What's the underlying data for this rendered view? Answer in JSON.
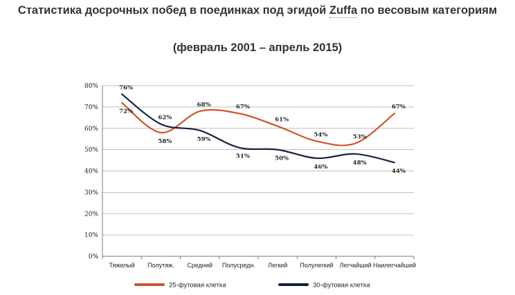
{
  "title": {
    "line1_before": "Статистика досрочных побед в поединках под эгидой ",
    "line1_link": "Zuffa",
    "line1_after": " по весовым категориям",
    "line2": "(февраль 2001 – апрель 2015)"
  },
  "chart_data": {
    "type": "line",
    "title": "Статистика досрочных побед в поединках под эгидой Zuffa по весовым категориям (февраль 2001 – апрель 2015)",
    "categories": [
      "Тяжелый",
      "Полутяж.",
      "Средний",
      "Полусредн.",
      "Легкий",
      "Полулегкий",
      "Легчайший",
      "Наилегчайший"
    ],
    "series": [
      {
        "name": "25-футовая клетка",
        "color": "#d0532d",
        "values": [
          72,
          58,
          68,
          67,
          61,
          54,
          53,
          67
        ]
      },
      {
        "name": "30-футовая клетка",
        "color": "#16213f",
        "values": [
          76,
          62,
          59,
          51,
          50,
          46,
          48,
          44
        ]
      }
    ],
    "y_ticks": [
      "0%",
      "10%",
      "20%",
      "30%",
      "40%",
      "50%",
      "60%",
      "70%",
      "80%"
    ],
    "ylim": [
      0,
      80
    ],
    "y_unit": "%",
    "grid": true,
    "legend": "bottom",
    "xlabel": "",
    "ylabel": ""
  }
}
